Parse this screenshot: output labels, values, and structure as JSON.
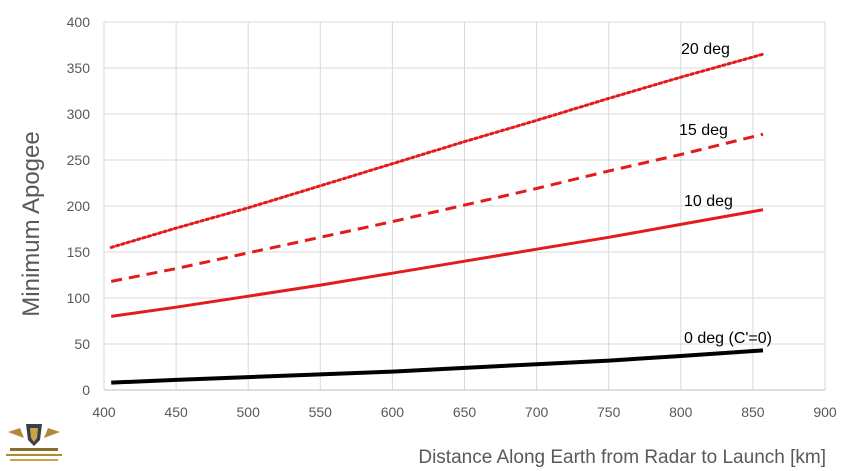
{
  "chart_data": {
    "type": "line",
    "title": "",
    "xlabel": "Distance Along Earth from Radar to Launch [km]",
    "ylabel": "Minimum Apogee",
    "xlim": [
      400,
      900
    ],
    "ylim": [
      0,
      400
    ],
    "xticks": [
      400,
      450,
      500,
      550,
      600,
      650,
      700,
      750,
      800,
      850,
      900
    ],
    "yticks": [
      0,
      50,
      100,
      150,
      200,
      250,
      300,
      350,
      400
    ],
    "grid": true,
    "legend": "none",
    "series": [
      {
        "name": "0 deg (C'=0)",
        "color": "#000000",
        "style": "solid",
        "points": [
          [
            405,
            8
          ],
          [
            450,
            11
          ],
          [
            500,
            14
          ],
          [
            550,
            17
          ],
          [
            600,
            20
          ],
          [
            650,
            24
          ],
          [
            700,
            28
          ],
          [
            750,
            32
          ],
          [
            800,
            37
          ],
          [
            857,
            43
          ]
        ]
      },
      {
        "name": "10 deg",
        "color": "#e31b1b",
        "style": "solid",
        "points": [
          [
            405,
            80
          ],
          [
            450,
            90
          ],
          [
            500,
            102
          ],
          [
            550,
            114
          ],
          [
            600,
            127
          ],
          [
            650,
            140
          ],
          [
            700,
            153
          ],
          [
            750,
            166
          ],
          [
            800,
            180
          ],
          [
            857,
            196
          ]
        ]
      },
      {
        "name": "15 deg",
        "color": "#e31b1b",
        "style": "dashed",
        "points": [
          [
            405,
            118
          ],
          [
            450,
            132
          ],
          [
            500,
            149
          ],
          [
            550,
            166
          ],
          [
            600,
            183
          ],
          [
            650,
            201
          ],
          [
            700,
            219
          ],
          [
            750,
            238
          ],
          [
            800,
            256
          ],
          [
            857,
            278
          ]
        ]
      },
      {
        "name": "20 deg",
        "color": "#e31b1b",
        "style": "dotted",
        "points": [
          [
            405,
            155
          ],
          [
            450,
            176
          ],
          [
            500,
            198
          ],
          [
            550,
            222
          ],
          [
            600,
            246
          ],
          [
            650,
            270
          ],
          [
            700,
            293
          ],
          [
            750,
            317
          ],
          [
            800,
            340
          ],
          [
            857,
            365
          ]
        ]
      }
    ]
  }
}
